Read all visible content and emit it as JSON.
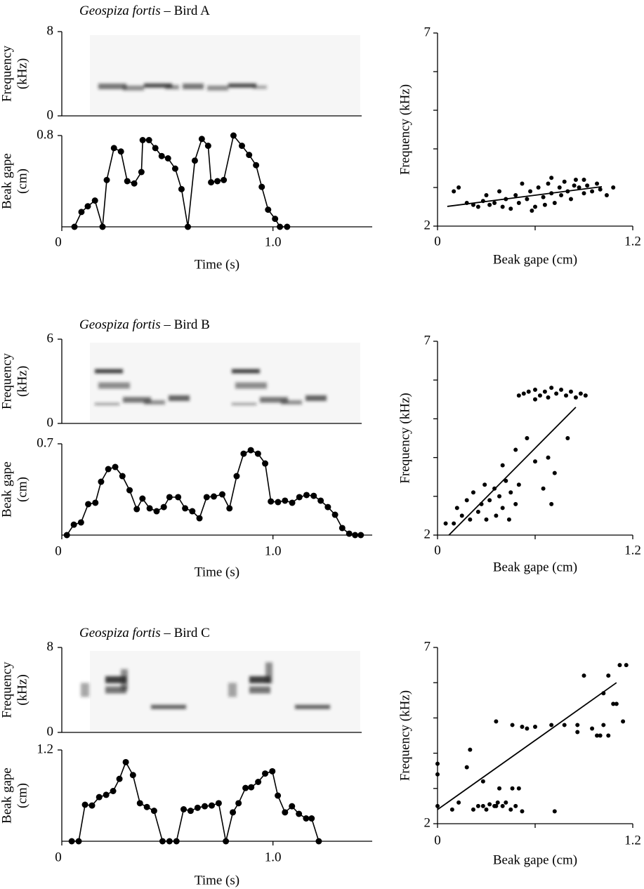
{
  "chart_data": [
    {
      "type": "spectrogram",
      "title": [
        "Geospiza fortis",
        "– Bird A"
      ],
      "ylabel": [
        "Frequency",
        "(kHz)"
      ],
      "ylim": [
        0,
        8
      ],
      "yticks": [
        0,
        8
      ]
    },
    {
      "type": "line",
      "ylabel": [
        "Beak gape",
        "(cm)"
      ],
      "xlabel": "Time (s)",
      "xlim": [
        0,
        1.47
      ],
      "ylim": [
        0,
        0.8
      ],
      "xticks": [
        0,
        {
          "value": 1,
          "label": "1.0"
        }
      ],
      "yticks": [
        0.8
      ],
      "x": [
        0.06,
        0.093,
        0.123,
        0.157,
        0.193,
        0.213,
        0.247,
        0.28,
        0.31,
        0.343,
        0.377,
        0.383,
        0.413,
        0.443,
        0.473,
        0.503,
        0.537,
        0.567,
        0.597,
        0.63,
        0.663,
        0.693,
        0.707,
        0.737,
        0.767,
        0.813,
        0.853,
        0.887,
        0.92,
        0.947,
        0.977,
        1.01,
        1.033,
        1.067
      ],
      "values": [
        0,
        0.13,
        0.18,
        0.23,
        0,
        0.41,
        0.69,
        0.66,
        0.4,
        0.38,
        0.48,
        0.76,
        0.76,
        0.69,
        0.62,
        0.6,
        0.51,
        0.33,
        0,
        0.58,
        0.77,
        0.71,
        0.39,
        0.4,
        0.41,
        0.8,
        0.71,
        0.63,
        0.54,
        0.35,
        0.15,
        0.07,
        0,
        0
      ]
    },
    {
      "type": "scatter",
      "xlabel": "Beak gape (cm)",
      "ylabel": "Frequency (kHz)",
      "xlim": [
        0,
        1.2
      ],
      "ylim": [
        2,
        7
      ],
      "xticks": [
        0,
        1.2
      ],
      "yticks": [
        2,
        7
      ],
      "xminor": [
        0.6
      ],
      "yminor": [
        3,
        4,
        5,
        6
      ],
      "x": [
        0.1,
        0.13,
        0.18,
        0.22,
        0.25,
        0.28,
        0.3,
        0.32,
        0.35,
        0.38,
        0.4,
        0.42,
        0.45,
        0.48,
        0.5,
        0.52,
        0.55,
        0.57,
        0.6,
        0.62,
        0.65,
        0.68,
        0.7,
        0.72,
        0.75,
        0.78,
        0.8,
        0.82,
        0.85,
        0.87,
        0.9,
        0.92,
        0.95,
        0.98,
        1.0,
        1.04,
        1.08,
        0.58,
        0.66,
        0.76,
        0.84,
        0.7,
        0.9
      ],
      "values": [
        2.9,
        3.0,
        2.6,
        2.55,
        2.5,
        2.65,
        2.8,
        2.55,
        2.6,
        2.9,
        2.5,
        2.7,
        2.45,
        2.8,
        2.6,
        3.1,
        2.7,
        2.9,
        2.5,
        3.0,
        2.75,
        3.1,
        2.85,
        2.6,
        3.0,
        3.15,
        2.9,
        2.7,
        3.2,
        3.0,
        2.85,
        3.05,
        2.9,
        3.1,
        2.95,
        2.8,
        3.0,
        2.4,
        2.55,
        2.8,
        3.05,
        3.25,
        3.2
      ],
      "fit": {
        "x": [
          0.06,
          1.01
        ],
        "y": [
          2.51,
          3.02
        ]
      }
    },
    {
      "type": "spectrogram",
      "title": [
        "Geospiza fortis",
        "– Bird B"
      ],
      "ylabel": [
        "Frequency",
        "(kHz)"
      ],
      "ylim": [
        0,
        6
      ],
      "yticks": [
        0,
        6
      ]
    },
    {
      "type": "line",
      "ylabel": [
        "Beak gape",
        "(cm)"
      ],
      "xlabel": "Time (s)",
      "xlim": [
        0,
        1.47
      ],
      "ylim": [
        0,
        0.7
      ],
      "xticks": [
        0,
        {
          "value": 1,
          "label": "1.0"
        }
      ],
      "yticks": [
        0.7
      ],
      "x": [
        0.024,
        0.057,
        0.091,
        0.125,
        0.159,
        0.186,
        0.22,
        0.253,
        0.287,
        0.321,
        0.355,
        0.382,
        0.416,
        0.449,
        0.483,
        0.51,
        0.551,
        0.584,
        0.618,
        0.652,
        0.686,
        0.72,
        0.76,
        0.794,
        0.828,
        0.861,
        0.895,
        0.929,
        0.963,
        0.99,
        1.024,
        1.057,
        1.091,
        1.125,
        1.159,
        1.193,
        1.226,
        1.26,
        1.294,
        1.328,
        1.361,
        1.389,
        1.416
      ],
      "values": [
        0,
        0.08,
        0.097,
        0.237,
        0.248,
        0.409,
        0.506,
        0.522,
        0.452,
        0.344,
        0.199,
        0.28,
        0.205,
        0.183,
        0.215,
        0.291,
        0.291,
        0.205,
        0.183,
        0.129,
        0.291,
        0.296,
        0.312,
        0.205,
        0.452,
        0.624,
        0.651,
        0.624,
        0.549,
        0.258,
        0.253,
        0.264,
        0.248,
        0.291,
        0.307,
        0.301,
        0.264,
        0.215,
        0.156,
        0.054,
        0.011,
        0,
        0
      ]
    },
    {
      "type": "scatter",
      "xlabel": "Beak gape (cm)",
      "ylabel": "Frequency (kHz)",
      "xlim": [
        0,
        1.2
      ],
      "ylim": [
        2,
        7
      ],
      "xticks": [
        0,
        1.2
      ],
      "yticks": [
        2,
        7
      ],
      "xminor": [
        0.6
      ],
      "yminor": [
        3,
        4,
        5,
        6
      ],
      "x": [
        0.5,
        0.53,
        0.56,
        0.6,
        0.63,
        0.66,
        0.7,
        0.73,
        0.76,
        0.79,
        0.82,
        0.85,
        0.88,
        0.91,
        0.6,
        0.68,
        0.4,
        0.48,
        0.55,
        0.6,
        0.68,
        0.72,
        0.8,
        0.65,
        0.7,
        0.05,
        0.1,
        0.12,
        0.15,
        0.18,
        0.2,
        0.22,
        0.25,
        0.27,
        0.29,
        0.3,
        0.32,
        0.35,
        0.36,
        0.38,
        0.4,
        0.42,
        0.44,
        0.45,
        0.48,
        0.5
      ],
      "values": [
        5.6,
        5.65,
        5.7,
        5.75,
        5.6,
        5.7,
        5.8,
        5.65,
        5.75,
        5.6,
        5.7,
        5.55,
        5.65,
        5.6,
        5.5,
        5.55,
        3.8,
        4.2,
        4.5,
        3.9,
        4.0,
        3.6,
        4.5,
        3.2,
        2.8,
        2.3,
        2.3,
        2.7,
        2.5,
        2.9,
        2.4,
        3.1,
        2.6,
        2.8,
        3.3,
        2.4,
        2.9,
        3.2,
        2.5,
        3.0,
        2.7,
        3.4,
        2.4,
        3.1,
        2.8,
        3.3
      ],
      "fit": {
        "x": [
          0.07,
          0.85
        ],
        "y": [
          2.0,
          5.3
        ]
      }
    },
    {
      "type": "spectrogram",
      "title": [
        "Geospiza fortis",
        "– Bird C"
      ],
      "ylabel": [
        "Frequency",
        "(kHz)"
      ],
      "ylim": [
        0,
        8
      ],
      "yticks": [
        0,
        8
      ]
    },
    {
      "type": "line",
      "ylabel": [
        "Beak gape",
        "(cm)"
      ],
      "xlabel": "Time (s)",
      "xlim": [
        0,
        1.47
      ],
      "ylim": [
        0,
        1.2
      ],
      "xticks": [
        0,
        {
          "value": 1,
          "label": "1.0"
        }
      ],
      "yticks": [
        1.2
      ],
      "x": [
        0.047,
        0.08,
        0.11,
        0.143,
        0.177,
        0.21,
        0.243,
        0.273,
        0.303,
        0.337,
        0.37,
        0.403,
        0.437,
        0.477,
        0.51,
        0.543,
        0.577,
        0.61,
        0.643,
        0.677,
        0.71,
        0.743,
        0.777,
        0.81,
        0.837,
        0.87,
        0.897,
        0.93,
        0.963,
        0.997,
        1.023,
        1.057,
        1.09,
        1.123,
        1.157,
        1.183,
        1.217
      ],
      "values": [
        0,
        0,
        0.48,
        0.47,
        0.58,
        0.61,
        0.66,
        0.82,
        1.04,
        0.87,
        0.5,
        0.45,
        0.4,
        0,
        0,
        0,
        0.42,
        0.4,
        0.44,
        0.46,
        0.47,
        0.5,
        0,
        0.38,
        0.5,
        0.7,
        0.71,
        0.78,
        0.89,
        0.92,
        0.6,
        0.38,
        0.46,
        0.36,
        0.3,
        0.3,
        0
      ]
    },
    {
      "type": "scatter",
      "xlabel": "Beak gape (cm)",
      "ylabel": "Frequency (kHz)",
      "xlim": [
        0,
        1.2
      ],
      "ylim": [
        2,
        7
      ],
      "xticks": [
        0,
        1.2
      ],
      "yticks": [
        2,
        7
      ],
      "xminor": [
        0.6
      ],
      "yminor": [
        3,
        4,
        5,
        6
      ],
      "x": [
        0,
        0,
        0,
        0.09,
        0.13,
        0.18,
        0.2,
        0.22,
        0.25,
        0.28,
        0.3,
        0.32,
        0.35,
        0.37,
        0.4,
        0.42,
        0.45,
        0.48,
        0.52,
        0.46,
        0.5,
        0.38,
        0.36,
        0.28,
        0.36,
        0.46,
        0.52,
        0.55,
        0.6,
        0.72,
        0.7,
        0.78,
        0.86,
        0.86,
        0.9,
        0.95,
        0.98,
        1.0,
        1.05,
        1.02,
        1.02,
        1.05,
        1.08,
        1.1,
        1.12,
        1.14,
        1.16
      ],
      "values": [
        3.7,
        3.4,
        2.5,
        2.4,
        2.6,
        3.6,
        4.1,
        2.4,
        2.5,
        2.5,
        2.4,
        2.55,
        2.5,
        2.6,
        2.5,
        2.6,
        2.4,
        2.5,
        2.35,
        3.0,
        3.0,
        3.0,
        4.9,
        3.2,
        2.5,
        4.8,
        4.75,
        4.7,
        4.75,
        2.35,
        4.8,
        4.8,
        4.8,
        4.6,
        6.2,
        4.7,
        4.5,
        4.5,
        4.5,
        4.8,
        5.7,
        6.2,
        5.4,
        5.4,
        6.5,
        4.9,
        6.5
      ],
      "fit": {
        "x": [
          0,
          1.1
        ],
        "y": [
          2.4,
          6.0
        ]
      }
    }
  ]
}
